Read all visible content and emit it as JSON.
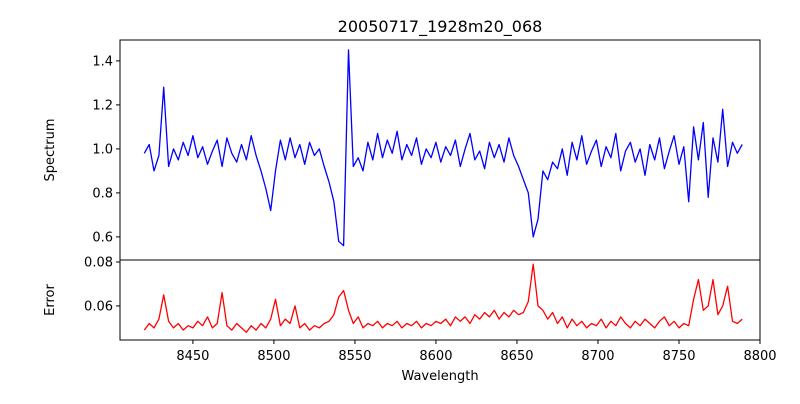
{
  "chart_data": {
    "type": "line",
    "title": "20050717_1928m20_068",
    "xlabel": "Wavelength",
    "xlim": [
      8405,
      8800
    ],
    "xticks": [
      8450,
      8500,
      8550,
      8600,
      8650,
      8700,
      8750,
      8800
    ],
    "x_start": 8420,
    "x_step": 3,
    "panels": [
      {
        "ylabel": "Spectrum",
        "ylim": [
          0.495,
          1.495
        ],
        "yticks": [
          0.6,
          0.8,
          1.0,
          1.2,
          1.4
        ],
        "ytick_labels": [
          "0.6",
          "0.8",
          "1.0",
          "1.2",
          "1.4"
        ],
        "series": {
          "name": "Spectrum",
          "color": "#0000ff",
          "values": [
            0.98,
            1.02,
            0.9,
            0.97,
            1.28,
            0.92,
            1.0,
            0.95,
            1.03,
            0.97,
            1.06,
            0.96,
            1.01,
            0.93,
            0.99,
            1.04,
            0.92,
            1.05,
            0.98,
            0.94,
            1.02,
            0.95,
            1.06,
            0.97,
            0.9,
            0.82,
            0.72,
            0.9,
            1.04,
            0.95,
            1.05,
            0.96,
            1.02,
            0.93,
            1.03,
            0.97,
            1.0,
            0.92,
            0.85,
            0.76,
            0.58,
            0.56,
            1.45,
            0.92,
            0.96,
            0.9,
            1.03,
            0.95,
            1.07,
            0.96,
            1.04,
            0.98,
            1.08,
            0.95,
            1.02,
            0.97,
            1.05,
            0.93,
            1.0,
            0.96,
            1.03,
            0.94,
            1.01,
            0.97,
            1.04,
            0.92,
            1.0,
            1.07,
            0.95,
            0.99,
            0.91,
            1.03,
            0.96,
            1.02,
            0.94,
            1.05,
            0.97,
            0.92,
            0.86,
            0.8,
            0.6,
            0.68,
            0.9,
            0.86,
            0.94,
            0.91,
            1.0,
            0.88,
            1.03,
            0.95,
            1.06,
            0.93,
            0.99,
            1.04,
            0.92,
            1.01,
            0.96,
            1.07,
            0.9,
            0.99,
            1.03,
            0.94,
            1.0,
            0.88,
            1.02,
            0.95,
            1.05,
            0.91,
            0.99,
            1.06,
            0.93,
            1.01,
            0.76,
            1.1,
            0.95,
            1.12,
            0.78,
            1.05,
            0.94,
            1.18,
            0.92,
            1.03,
            0.98,
            1.02
          ]
        }
      },
      {
        "ylabel": "Error",
        "ylim": [
          0.0445,
          0.0809
        ],
        "yticks": [
          0.06,
          0.08
        ],
        "ytick_labels": [
          "0.06",
          "0.08"
        ],
        "series": {
          "name": "Error",
          "color": "#ff0000",
          "values": [
            0.049,
            0.052,
            0.05,
            0.054,
            0.065,
            0.053,
            0.05,
            0.052,
            0.049,
            0.051,
            0.05,
            0.053,
            0.051,
            0.055,
            0.05,
            0.052,
            0.066,
            0.051,
            0.049,
            0.052,
            0.05,
            0.048,
            0.051,
            0.049,
            0.052,
            0.05,
            0.054,
            0.063,
            0.051,
            0.054,
            0.052,
            0.06,
            0.05,
            0.052,
            0.049,
            0.051,
            0.05,
            0.052,
            0.053,
            0.056,
            0.064,
            0.067,
            0.058,
            0.052,
            0.055,
            0.05,
            0.052,
            0.051,
            0.053,
            0.05,
            0.052,
            0.051,
            0.053,
            0.05,
            0.052,
            0.051,
            0.053,
            0.05,
            0.052,
            0.051,
            0.053,
            0.052,
            0.054,
            0.051,
            0.055,
            0.053,
            0.055,
            0.052,
            0.056,
            0.054,
            0.057,
            0.055,
            0.058,
            0.054,
            0.057,
            0.055,
            0.058,
            0.056,
            0.057,
            0.062,
            0.079,
            0.06,
            0.058,
            0.054,
            0.057,
            0.052,
            0.055,
            0.05,
            0.054,
            0.051,
            0.053,
            0.05,
            0.052,
            0.051,
            0.054,
            0.05,
            0.053,
            0.051,
            0.055,
            0.052,
            0.05,
            0.053,
            0.051,
            0.054,
            0.052,
            0.05,
            0.053,
            0.055,
            0.051,
            0.053,
            0.05,
            0.052,
            0.051,
            0.063,
            0.072,
            0.058,
            0.06,
            0.072,
            0.056,
            0.06,
            0.069,
            0.053,
            0.052,
            0.054
          ]
        }
      }
    ]
  }
}
